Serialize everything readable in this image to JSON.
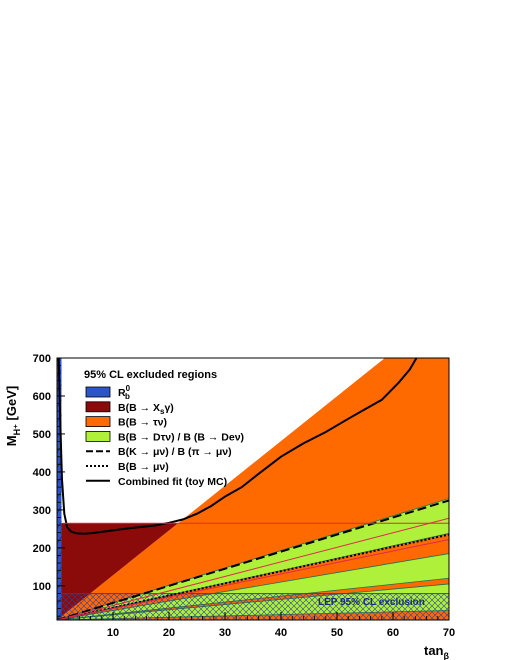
{
  "chart_data": {
    "type": "area",
    "xlabel": "tan",
    "xlabel_sub": "β",
    "ylabel": "M",
    "ylabel_sub": "H⁺",
    "ylabel_unit": " [GeV]",
    "xlim": [
      0,
      70
    ],
    "ylim": [
      10,
      700
    ],
    "x_ticks": [
      10,
      20,
      30,
      40,
      50,
      60,
      70
    ],
    "y_ticks": [
      100,
      200,
      300,
      400,
      500,
      600,
      700
    ],
    "legend": {
      "title": "95% CL excluded regions",
      "placement": "top-left",
      "entries": [
        {
          "label": "R",
          "sup": "0",
          "sub": "b",
          "style": "box",
          "color": "#2b55c8"
        },
        {
          "label": "B(B → X",
          "sub": "s",
          "tail": "γ)",
          "style": "box",
          "color": "#8b0a0a"
        },
        {
          "label": "B(B → τν)",
          "style": "box",
          "color": "#ff6a00"
        },
        {
          "label": "B(B → Dτν) / B (B → Deν)",
          "style": "box",
          "color": "#aef03a"
        },
        {
          "label": "B(K → μν) / B (π → μν)",
          "style": "dashed"
        },
        {
          "label": "B(B → μν)",
          "style": "dotted"
        },
        {
          "label": "Combined fit (toy MC)",
          "style": "solid"
        }
      ]
    },
    "annotation": "LEP 95% CL exclusion",
    "colors": {
      "rb": "#2b55c8",
      "bsg": "#8b0a0a",
      "btaunu": "#ff6a00",
      "dtaunu": "#aef03a",
      "lep": "#2b3fa0"
    },
    "regions": {
      "rb_upper_tanb": 0.8,
      "bsg_mass": 265,
      "lep_mass": 79.3,
      "btaunu_upper": {
        "x": [
          0,
          70
        ],
        "y": [
          10,
          835
        ]
      },
      "dtaunu_band_1": {
        "upper": {
          "x": [
            0,
            70
          ],
          "y": [
            10,
            330
          ]
        },
        "lower": {
          "x": [
            0,
            70
          ],
          "y": [
            10,
            238
          ]
        }
      },
      "dtaunu_band_2": {
        "upper": {
          "x": [
            0,
            70
          ],
          "y": [
            10,
            185
          ]
        },
        "lower": {
          "x": [
            0,
            70
          ],
          "y": [
            10,
            120
          ]
        }
      },
      "dtaunu_band_3": {
        "upper": {
          "x": [
            0,
            70
          ],
          "y": [
            10,
            105
          ]
        },
        "lower": {
          "x": [
            0,
            70
          ],
          "y": [
            10,
            35
          ]
        }
      }
    },
    "series": [
      {
        "name": "B(K → μν) / B (π → μν)",
        "style": "dashed",
        "x": [
          0,
          70
        ],
        "y": [
          10,
          325
        ]
      },
      {
        "name": "B(B → μν)",
        "style": "dotted",
        "x": [
          0,
          70
        ],
        "y": [
          10,
          235
        ]
      },
      {
        "name": "Combined fit (toy MC)",
        "style": "solid",
        "x": [
          0.3,
          0.6,
          0.9,
          1.3,
          1.8,
          2.5,
          3.5,
          5,
          6.5,
          8,
          10,
          12.5,
          15,
          17.5,
          20,
          22.5,
          25,
          27.5,
          30,
          33,
          36,
          40,
          44,
          48,
          52,
          55,
          58,
          61,
          63,
          64.2
        ],
        "y": [
          700,
          520,
          380,
          290,
          255,
          243,
          238,
          237,
          239,
          242,
          246,
          251,
          255,
          259,
          266,
          275,
          290,
          310,
          335,
          360,
          395,
          440,
          475,
          505,
          540,
          565,
          590,
          635,
          670,
          700
        ]
      },
      {
        "name": "R_b^0 / B(B→X_sγ) boundary",
        "style": "red-line",
        "x": [
          1,
          70
        ],
        "y": [
          265,
          265
        ]
      },
      {
        "name": "B(B→τν) boundary",
        "style": "red-line",
        "x": [
          0,
          70
        ],
        "y": [
          10,
          278
        ]
      },
      {
        "name": "B(B→Dτν) boundary",
        "style": "red-line",
        "x": [
          0,
          70
        ],
        "y": [
          10,
          222
        ]
      }
    ]
  }
}
